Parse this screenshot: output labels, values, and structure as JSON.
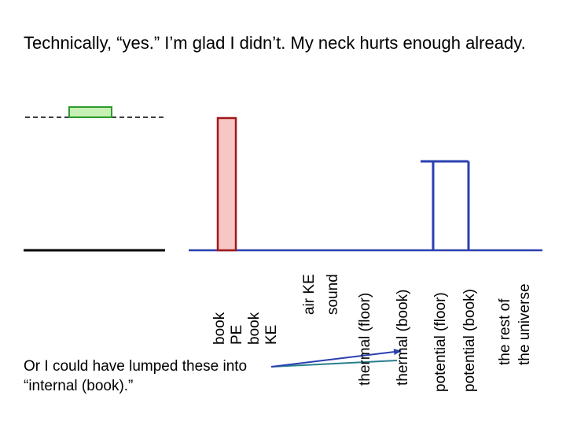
{
  "slide": {
    "title": "Technically, “yes.”  I’m glad I didn’t.  My neck hurts enough already.",
    "note": "Or I could have lumped these into “internal (book).”"
  },
  "bar_labels": {
    "book_pe_book_ke": [
      "book",
      "PE",
      "book",
      "KE"
    ],
    "air_ke_sound": [
      "air KE",
      "sound"
    ],
    "thermal_floor": "thermal (floor)",
    "thermal_book": "thermal (book)",
    "potential_floor": "potential (floor)",
    "potential_book": "potential (book)",
    "rest_of_universe": [
      "the rest of",
      "the universe"
    ]
  },
  "colors": {
    "baseline_blue": "#2a3fb0",
    "bar_fill": "#f9c6c6",
    "bar_stroke": "#a01818",
    "block_fill": "#c6f0b4",
    "block_stroke": "#2e9a2e",
    "arrow_teal": "#2a7f8f"
  }
}
